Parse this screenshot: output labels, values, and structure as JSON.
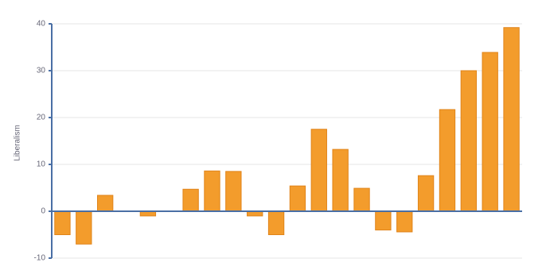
{
  "chart_data": {
    "type": "bar",
    "y_label": "Liberalism",
    "categories": [
      null,
      null,
      null,
      null,
      null,
      null,
      null,
      null,
      null,
      null,
      null,
      null,
      null,
      null,
      null,
      null,
      null,
      null,
      null,
      null,
      null,
      null
    ],
    "values": [
      -5,
      -7,
      3.4,
      0,
      -1,
      0,
      4.7,
      8.6,
      8.5,
      -1,
      -5,
      5.4,
      17.5,
      13.2,
      4.9,
      -4,
      -4.4,
      7.6,
      21.7,
      30,
      33.9,
      39.2
    ],
    "color": "#f39c2c",
    "ylim": [
      -10,
      40
    ],
    "yticks": [
      -10,
      0,
      10,
      20,
      30,
      40
    ],
    "grid": true
  }
}
